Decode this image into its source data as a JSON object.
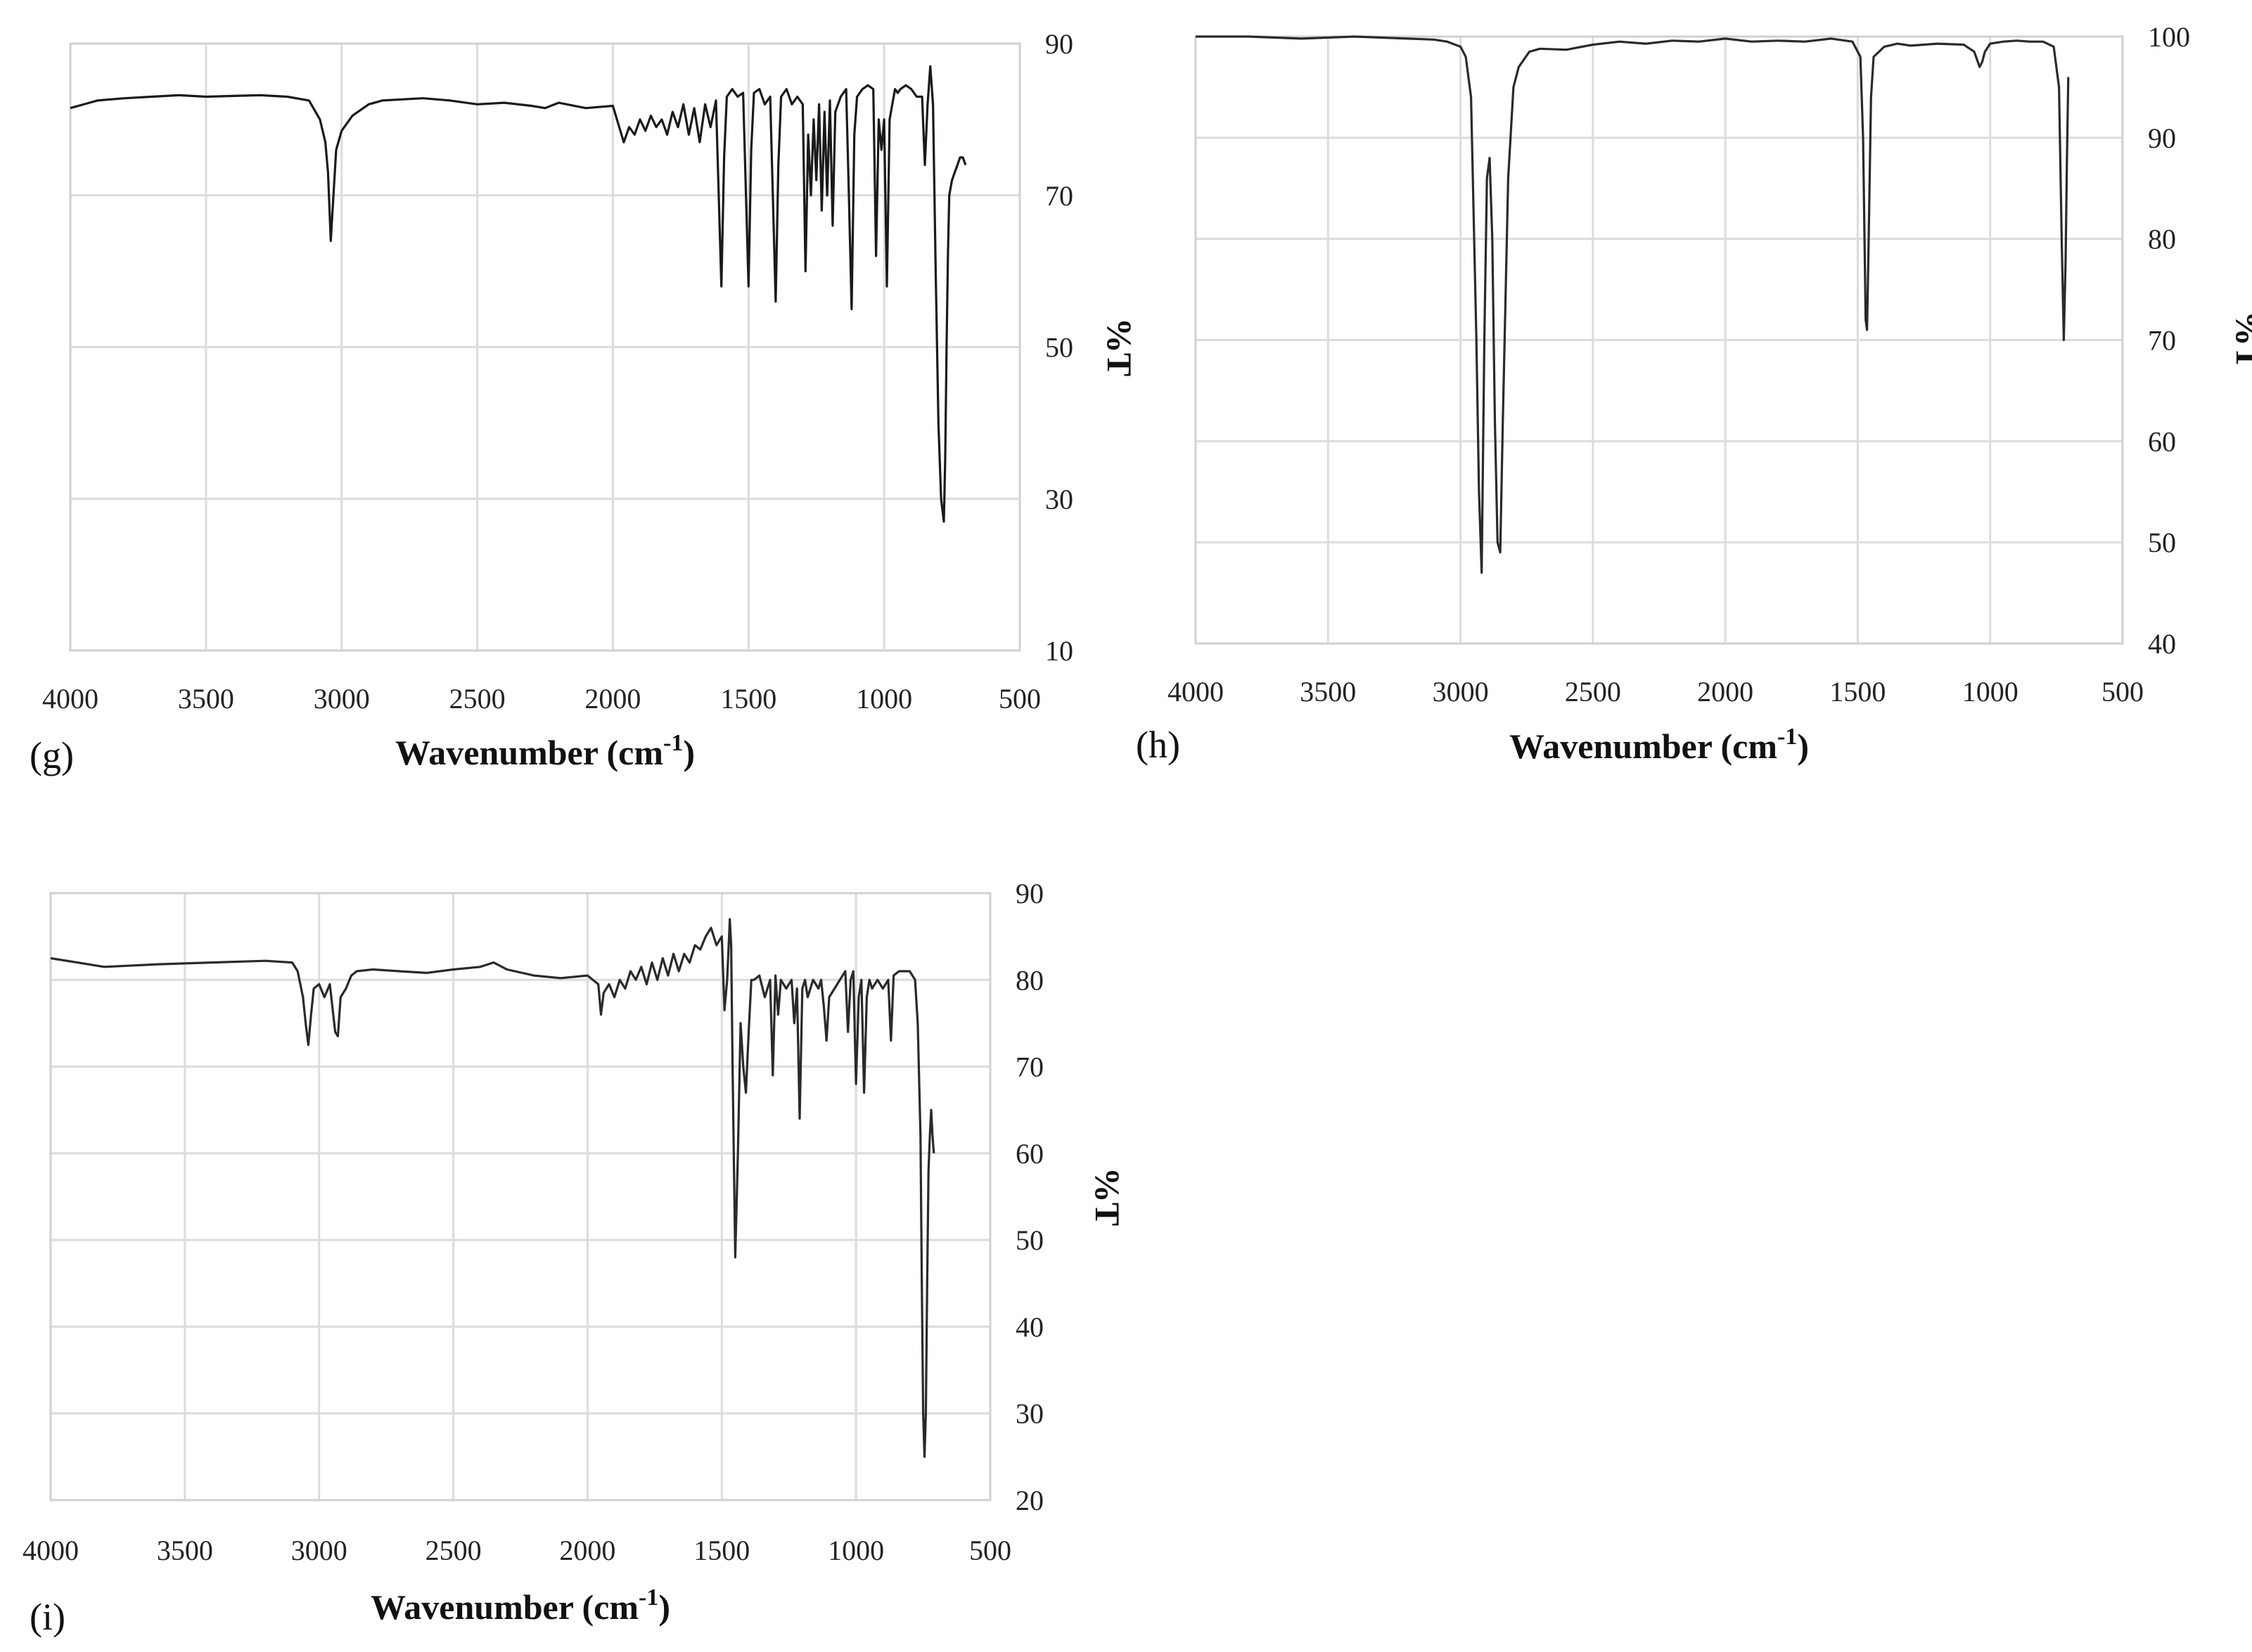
{
  "chart_data": [
    {
      "type": "line",
      "panel_label": "(g)",
      "xlabel": "Wavenumber (cm",
      "xlabel_sup": "-1",
      "xlabel_end": ")",
      "ylabel": "%T",
      "xlim": [
        4000,
        500
      ],
      "ylim": [
        10,
        90
      ],
      "x_ticks": [
        4000,
        3500,
        3000,
        2500,
        2000,
        1500,
        1000,
        500
      ],
      "y_ticks": [
        10,
        30,
        50,
        70,
        90
      ],
      "grid": true,
      "line_color": "#1a1a1a",
      "series": [
        {
          "x": [
            4000,
            3900,
            3800,
            3700,
            3600,
            3500,
            3400,
            3300,
            3200,
            3120,
            3080,
            3060,
            3050,
            3040,
            3030,
            3020,
            3000,
            2960,
            2920,
            2900,
            2850,
            2800,
            2700,
            2600,
            2500,
            2400,
            2300,
            2250,
            2200,
            2100,
            2000,
            1960,
            1940,
            1920,
            1900,
            1880,
            1860,
            1840,
            1820,
            1800,
            1780,
            1760,
            1740,
            1720,
            1700,
            1680,
            1660,
            1640,
            1620,
            1600,
            1590,
            1580,
            1560,
            1540,
            1520,
            1500,
            1490,
            1480,
            1460,
            1440,
            1420,
            1400,
            1390,
            1380,
            1360,
            1340,
            1320,
            1300,
            1290,
            1280,
            1270,
            1260,
            1250,
            1240,
            1230,
            1220,
            1210,
            1200,
            1190,
            1180,
            1160,
            1140,
            1130,
            1120,
            1110,
            1100,
            1080,
            1060,
            1040,
            1030,
            1020,
            1010,
            1000,
            990,
            980,
            970,
            960,
            950,
            940,
            920,
            900,
            880,
            860,
            850,
            840,
            830,
            820,
            810,
            800,
            790,
            780,
            775,
            770,
            765,
            760,
            750,
            740,
            730,
            720,
            710,
            700
          ],
          "y": [
            81.5,
            82.5,
            82.8,
            83.0,
            83.2,
            83.0,
            83.1,
            83.2,
            83.0,
            82.5,
            80,
            77,
            73,
            64,
            70,
            76,
            78.5,
            80.5,
            81.5,
            82,
            82.5,
            82.6,
            82.8,
            82.5,
            82,
            82.2,
            81.8,
            81.5,
            82.2,
            81.5,
            81.8,
            77,
            79,
            78,
            80,
            78.5,
            80.5,
            79,
            80,
            78,
            81,
            79,
            82,
            78,
            81.5,
            77,
            82,
            79,
            82.5,
            58,
            75,
            83,
            84,
            83,
            83.5,
            58,
            76,
            83.5,
            84,
            82,
            83,
            56,
            74,
            83,
            84,
            82,
            83,
            82,
            60,
            78,
            70,
            80,
            72,
            82,
            68,
            81,
            70,
            82.5,
            66,
            81,
            83,
            84,
            70,
            55,
            78,
            83,
            84,
            84.5,
            84,
            62,
            80,
            76,
            80,
            58,
            80,
            82,
            84,
            83.5,
            84,
            84.5,
            84,
            83,
            83,
            74,
            82,
            87,
            82,
            60,
            40,
            30,
            27,
            35,
            50,
            62,
            70,
            72,
            73,
            74,
            75,
            75,
            74
          ]
        }
      ]
    },
    {
      "type": "line",
      "panel_label": "(h)",
      "xlabel": "Wavenumber (cm",
      "xlabel_sup": "-1",
      "xlabel_end": ")",
      "ylabel": "%T",
      "xlim": [
        4000,
        500
      ],
      "ylim": [
        40,
        100
      ],
      "x_ticks": [
        4000,
        3500,
        3000,
        2500,
        2000,
        1500,
        1000,
        500
      ],
      "y_ticks": [
        40,
        50,
        60,
        70,
        80,
        90,
        100
      ],
      "grid": true,
      "line_color": "#2a2a2a",
      "series": [
        {
          "x": [
            4000,
            3800,
            3600,
            3400,
            3200,
            3100,
            3050,
            3000,
            2980,
            2960,
            2940,
            2930,
            2920,
            2910,
            2900,
            2890,
            2880,
            2870,
            2860,
            2850,
            2840,
            2820,
            2800,
            2780,
            2740,
            2700,
            2600,
            2500,
            2400,
            2300,
            2200,
            2100,
            2000,
            1900,
            1800,
            1700,
            1600,
            1520,
            1490,
            1480,
            1470,
            1465,
            1460,
            1450,
            1440,
            1420,
            1400,
            1350,
            1300,
            1200,
            1100,
            1060,
            1040,
            1030,
            1020,
            1000,
            950,
            900,
            850,
            800,
            760,
            740,
            730,
            722,
            715,
            710,
            705
          ],
          "y": [
            100,
            100,
            99.8,
            100,
            99.8,
            99.7,
            99.5,
            99,
            98,
            94,
            70,
            55,
            47,
            70,
            86,
            88,
            80,
            62,
            50,
            49,
            62,
            86,
            95,
            97,
            98.5,
            98.8,
            98.7,
            99.2,
            99.5,
            99.3,
            99.6,
            99.5,
            99.8,
            99.5,
            99.6,
            99.5,
            99.8,
            99.5,
            98,
            90,
            72,
            71,
            78,
            94,
            98,
            98.5,
            99,
            99.3,
            99.1,
            99.3,
            99.2,
            98.5,
            97,
            97.5,
            98.5,
            99.3,
            99.5,
            99.6,
            99.5,
            99.5,
            99,
            95,
            80,
            70,
            78,
            88,
            96
          ]
        }
      ]
    },
    {
      "type": "line",
      "panel_label": "(i)",
      "xlabel": "Wavenumber (cm",
      "xlabel_sup": "-1",
      "xlabel_end": ")",
      "ylabel": "%T",
      "xlim": [
        4000,
        500
      ],
      "ylim": [
        20,
        90
      ],
      "x_ticks": [
        4000,
        3500,
        3000,
        2500,
        2000,
        1500,
        1000,
        500
      ],
      "y_ticks": [
        20,
        30,
        40,
        50,
        60,
        70,
        80,
        90
      ],
      "grid": true,
      "line_color": "#2a2a2a",
      "series": [
        {
          "x": [
            4000,
            3800,
            3600,
            3400,
            3200,
            3100,
            3080,
            3060,
            3050,
            3040,
            3030,
            3020,
            3000,
            2980,
            2960,
            2940,
            2930,
            2920,
            2900,
            2880,
            2860,
            2800,
            2700,
            2600,
            2500,
            2400,
            2350,
            2300,
            2200,
            2100,
            2000,
            1960,
            1950,
            1940,
            1920,
            1900,
            1880,
            1860,
            1840,
            1820,
            1800,
            1780,
            1760,
            1740,
            1720,
            1700,
            1680,
            1660,
            1640,
            1620,
            1600,
            1580,
            1560,
            1540,
            1520,
            1500,
            1490,
            1480,
            1470,
            1465,
            1460,
            1450,
            1440,
            1430,
            1420,
            1410,
            1400,
            1390,
            1380,
            1360,
            1340,
            1320,
            1310,
            1300,
            1290,
            1280,
            1260,
            1240,
            1230,
            1220,
            1210,
            1200,
            1190,
            1180,
            1160,
            1140,
            1130,
            1120,
            1110,
            1100,
            1080,
            1060,
            1040,
            1030,
            1020,
            1010,
            1000,
            990,
            980,
            970,
            960,
            950,
            940,
            920,
            900,
            880,
            870,
            860,
            840,
            820,
            800,
            790,
            780,
            770,
            760,
            755,
            750,
            745,
            740,
            735,
            730,
            725,
            720,
            715,
            710
          ],
          "y": [
            82.5,
            81.5,
            81.8,
            82,
            82.2,
            82,
            81,
            78,
            75,
            72.5,
            76,
            79,
            79.5,
            78,
            79.5,
            74,
            73.5,
            78,
            79,
            80.5,
            81,
            81.2,
            81,
            80.8,
            81.2,
            81.5,
            82,
            81.2,
            80.5,
            80.2,
            80.5,
            79.5,
            76,
            78.5,
            79.5,
            78,
            80,
            79,
            81,
            80,
            81.5,
            79.5,
            82,
            80,
            82.5,
            80.5,
            83,
            81,
            83,
            82,
            84,
            83.5,
            85,
            86,
            84,
            85,
            76.5,
            80,
            87,
            84,
            70,
            48,
            60,
            75,
            70,
            67,
            74,
            80,
            80,
            80.5,
            78,
            80,
            69,
            80.5,
            76,
            80,
            79,
            80,
            75,
            79,
            64,
            79,
            80,
            78,
            80,
            79,
            80,
            77,
            73,
            78,
            79,
            80,
            81,
            74,
            80,
            81,
            68,
            78,
            80,
            67,
            78,
            80,
            79,
            80,
            79,
            80,
            73,
            80.5,
            81,
            81,
            81,
            80.5,
            80,
            75,
            62,
            45,
            30,
            25,
            30,
            45,
            58,
            62,
            65,
            62,
            60
          ]
        }
      ]
    }
  ]
}
